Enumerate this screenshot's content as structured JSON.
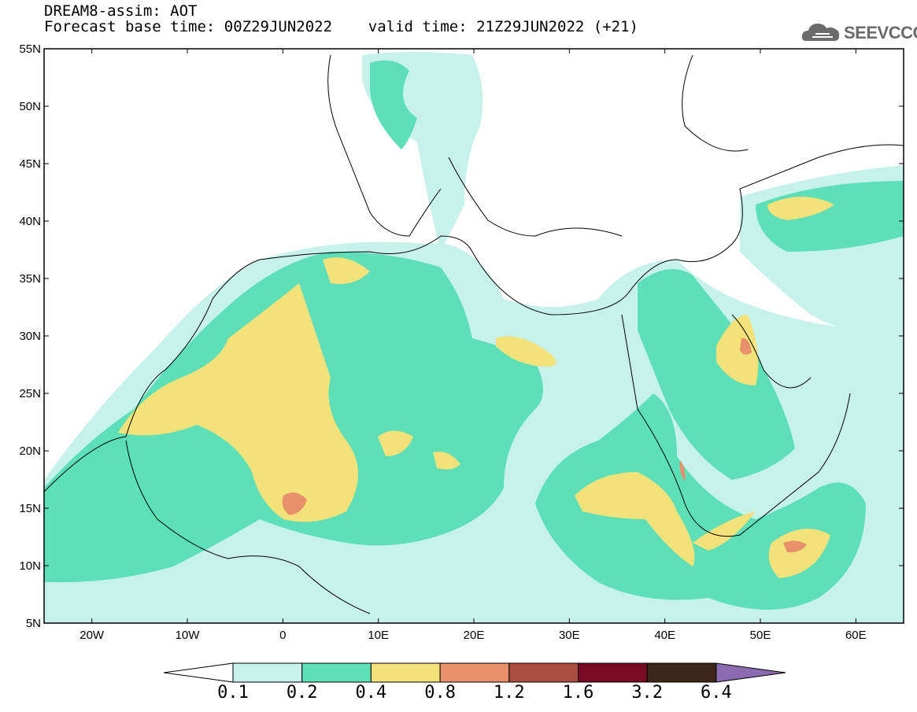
{
  "header": {
    "line1": "DREAM8-assim: AOT",
    "line2": "Forecast base time: 00Z29JUN2022    valid time: 21Z29JUN2022 (+21)"
  },
  "logo": {
    "text": "SEEVCCC",
    "icon": "cloud-icon",
    "color": "#6b6b6b"
  },
  "map": {
    "lat_ticks": [
      "55N",
      "50N",
      "45N",
      "40N",
      "35N",
      "30N",
      "25N",
      "20N",
      "15N",
      "10N",
      "5N"
    ],
    "lon_ticks": [
      "20W",
      "10W",
      "0",
      "10E",
      "20E",
      "30E",
      "40E",
      "50E",
      "60E"
    ],
    "extent": {
      "lon": [
        -25,
        65
      ],
      "lat": [
        5,
        55
      ]
    }
  },
  "colorbar": {
    "labels": [
      "0.1",
      "0.2",
      "0.4",
      "0.8",
      "1.2",
      "1.6",
      "3.2",
      "6.4"
    ],
    "colors": [
      "#ffffff",
      "#c7f2ea",
      "#5ddfb8",
      "#f3e17a",
      "#e8906a",
      "#ab4e3e",
      "#780a23",
      "#3e2718",
      "#8b6bb0"
    ]
  }
}
